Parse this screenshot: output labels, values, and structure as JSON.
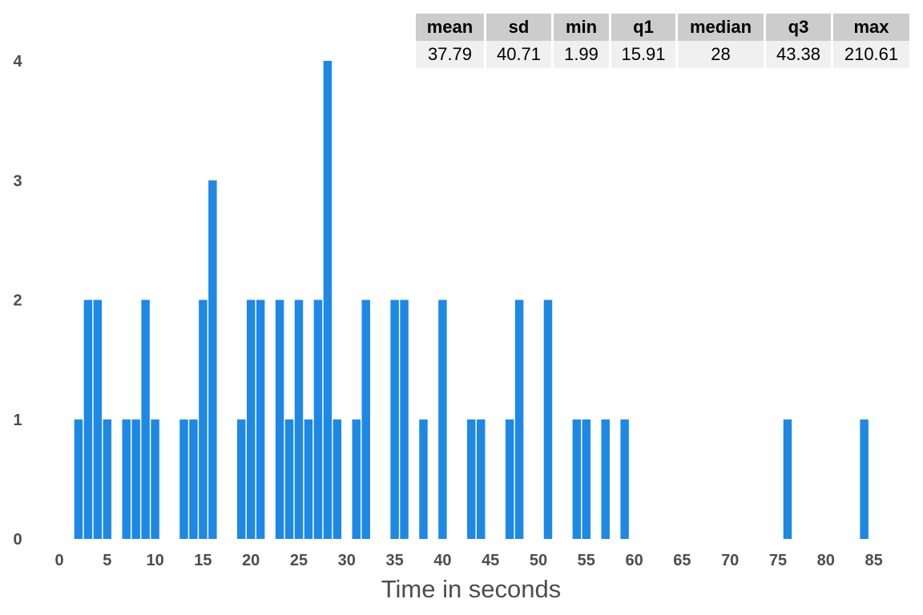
{
  "chart_data": {
    "type": "bar",
    "xlabel": "Time in seconds",
    "ylabel": "",
    "xlim": [
      0,
      85
    ],
    "ylim": [
      0,
      4
    ],
    "x_ticks": [
      0,
      5,
      10,
      15,
      20,
      25,
      30,
      35,
      40,
      45,
      50,
      55,
      60,
      65,
      70,
      75,
      80,
      85
    ],
    "y_ticks": [
      0,
      1,
      2,
      3,
      4
    ],
    "bin_width": 1,
    "grid": false,
    "color": "#1e88e5",
    "bars": [
      {
        "x": 2,
        "count": 1
      },
      {
        "x": 3,
        "count": 2
      },
      {
        "x": 4,
        "count": 2
      },
      {
        "x": 5,
        "count": 1
      },
      {
        "x": 7,
        "count": 1
      },
      {
        "x": 8,
        "count": 1
      },
      {
        "x": 9,
        "count": 2
      },
      {
        "x": 10,
        "count": 1
      },
      {
        "x": 13,
        "count": 1
      },
      {
        "x": 14,
        "count": 1
      },
      {
        "x": 15,
        "count": 2
      },
      {
        "x": 16,
        "count": 3
      },
      {
        "x": 19,
        "count": 1
      },
      {
        "x": 20,
        "count": 2
      },
      {
        "x": 21,
        "count": 2
      },
      {
        "x": 23,
        "count": 2
      },
      {
        "x": 24,
        "count": 1
      },
      {
        "x": 25,
        "count": 2
      },
      {
        "x": 26,
        "count": 1
      },
      {
        "x": 27,
        "count": 2
      },
      {
        "x": 28,
        "count": 4
      },
      {
        "x": 29,
        "count": 1
      },
      {
        "x": 31,
        "count": 1
      },
      {
        "x": 32,
        "count": 2
      },
      {
        "x": 35,
        "count": 2
      },
      {
        "x": 36,
        "count": 2
      },
      {
        "x": 38,
        "count": 1
      },
      {
        "x": 40,
        "count": 2
      },
      {
        "x": 43,
        "count": 1
      },
      {
        "x": 44,
        "count": 1
      },
      {
        "x": 47,
        "count": 1
      },
      {
        "x": 48,
        "count": 2
      },
      {
        "x": 51,
        "count": 2
      },
      {
        "x": 54,
        "count": 1
      },
      {
        "x": 55,
        "count": 1
      },
      {
        "x": 57,
        "count": 1
      },
      {
        "x": 59,
        "count": 1
      },
      {
        "x": 76,
        "count": 1
      },
      {
        "x": 84,
        "count": 1
      }
    ]
  },
  "stats_table": {
    "headers": [
      "mean",
      "sd",
      "min",
      "q1",
      "median",
      "q3",
      "max"
    ],
    "values": [
      "37.79",
      "40.71",
      "1.99",
      "15.91",
      "28",
      "43.38",
      "210.61"
    ]
  }
}
